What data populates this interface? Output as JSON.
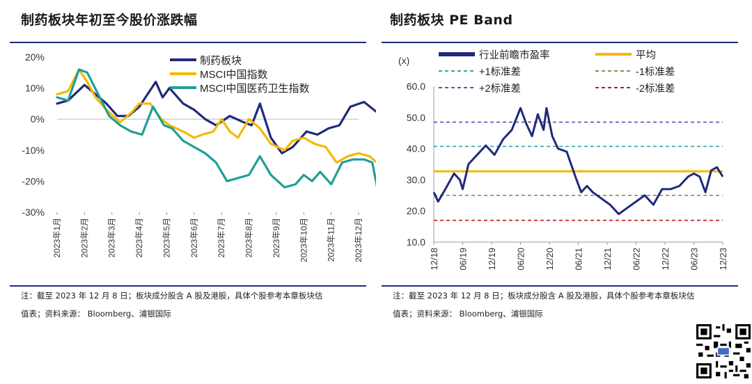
{
  "colors": {
    "navy": "#1f2a7a",
    "yellow": "#f5b800",
    "teal": "#1f9e98",
    "dashTeal": "#2aa6a6",
    "dashOlive": "#8a8a5a",
    "dashPurple": "#5a4fb0",
    "dashRed": "#c0151c"
  },
  "left_panel": {
    "title": "制药板块年初至今股价涨跌幅",
    "note_line1": "注：截至 2023 年 12 月 8 日；板块成分股含 A 股及港股，具体个股参考本章板块估",
    "note_line2": "值表；资料来源：  Bloomberg、浦银国际"
  },
  "right_panel": {
    "title": "制药板块 PE Band",
    "note_line1": "注：截至 2023 年 12 月 8 日；板块成分股含 A 股及港股，具体个股参考本章板块估",
    "note_line2": "值表；资料来源：  Bloomberg、浦银国际"
  },
  "chart_data": [
    {
      "type": "line",
      "title": "制药板块年初至今股价涨跌幅",
      "ylim": [
        -30,
        20
      ],
      "yticks": [
        "20%",
        "10%",
        "0%",
        "-10%",
        "-20%",
        "-30%"
      ],
      "categories": [
        "2023年1月",
        "2023年2月",
        "2023年3月",
        "2023年4月",
        "2023年5月",
        "2023年6月",
        "2023年7月",
        "2023年8月",
        "2023年9月",
        "2023年10月",
        "2023年11月",
        "2023年12月"
      ],
      "legend_position": "top-right",
      "series": [
        {
          "name": "制药板块",
          "color": "#1f2a7a",
          "x": [
            0,
            0.4,
            1,
            1.4,
            1.8,
            2.2,
            2.6,
            3,
            3.3,
            3.6,
            3.85,
            4.1,
            4.6,
            5,
            5.4,
            5.8,
            6.3,
            6.8,
            7.1,
            7.4,
            7.8,
            8.2,
            8.6,
            9.1,
            9.5,
            9.9,
            10.3,
            10.7,
            11.2,
            11.7
          ],
          "values": [
            5,
            6,
            11,
            8,
            5,
            1,
            1,
            4,
            8,
            12,
            7,
            10,
            5,
            3,
            0,
            -2,
            1,
            -1,
            -2,
            5,
            -6,
            -11,
            -9,
            -4,
            -5,
            -3,
            -2,
            4,
            5.5,
            2
          ]
        },
        {
          "name": "MSCI中国指数",
          "color": "#f5b800",
          "x": [
            0,
            0.4,
            0.8,
            1.1,
            1.4,
            1.8,
            2.3,
            2.7,
            3,
            3.4,
            3.8,
            4.1,
            4.6,
            5,
            5.3,
            5.7,
            6,
            6.3,
            6.6,
            7,
            7.4,
            7.8,
            8.3,
            8.6,
            9,
            9.4,
            9.8,
            10.2,
            10.6,
            11,
            11.4,
            11.8
          ],
          "values": [
            8,
            9,
            16,
            12,
            7,
            3,
            -1,
            2,
            5,
            5,
            0,
            -2,
            -4,
            -6,
            -5,
            -4,
            0,
            -4,
            -6,
            0,
            -3,
            -8,
            -10,
            -7,
            -6,
            -8,
            -9,
            -14,
            -12,
            -11,
            -12,
            -15
          ]
        },
        {
          "name": "MSCI中国医药卫生指数",
          "color": "#1f9e98",
          "x": [
            0,
            0.4,
            0.8,
            1.1,
            1.5,
            1.9,
            2.3,
            2.7,
            3.1,
            3.5,
            3.9,
            4.2,
            4.6,
            5,
            5.4,
            5.8,
            6.2,
            6.6,
            7,
            7.4,
            7.8,
            8.3,
            8.7,
            9,
            9.3,
            9.6,
            10,
            10.4,
            10.8,
            11.2,
            11.5,
            11.7
          ],
          "values": [
            7,
            6,
            16,
            15,
            8,
            1,
            -2,
            -4,
            -5,
            4,
            -2,
            -3,
            -7,
            -9,
            -11,
            -14,
            -20,
            -19,
            -18,
            -12,
            -18,
            -22,
            -21,
            -18,
            -20,
            -17,
            -21,
            -14,
            -13,
            -13,
            -14,
            -23
          ]
        }
      ]
    },
    {
      "type": "line",
      "title": "制药板块 PE Band",
      "ylabel": "(x)",
      "ylim": [
        10,
        60
      ],
      "yticks": [
        "60.0",
        "50.0",
        "40.0",
        "30.0",
        "20.0",
        "10.0"
      ],
      "categories": [
        "12/18",
        "06/19",
        "12/19",
        "06/20",
        "12/20",
        "06/21",
        "12/21",
        "06/22",
        "12/22",
        "06/23",
        "12/23"
      ],
      "legend_position": "top",
      "series": [
        {
          "name": "行业前瞻市盈率",
          "color": "#1f2a7a",
          "x": [
            0,
            0.15,
            0.4,
            0.7,
            0.9,
            1,
            1.2,
            1.5,
            1.8,
            2.1,
            2.4,
            2.7,
            3,
            3.2,
            3.4,
            3.6,
            3.8,
            3.9,
            4.1,
            4.3,
            4.6,
            4.9,
            5.1,
            5.3,
            5.5,
            5.8,
            6.1,
            6.4,
            6.7,
            7,
            7.3,
            7.6,
            7.9,
            8.2,
            8.5,
            8.8,
            9,
            9.2,
            9.4,
            9.6,
            9.8,
            10
          ],
          "values": [
            26,
            23,
            27,
            32,
            30,
            27,
            35,
            38,
            41,
            38,
            43,
            46,
            53,
            48,
            44,
            51,
            46,
            53,
            44,
            40,
            39,
            31,
            26,
            28,
            26,
            24,
            22,
            19,
            21,
            23,
            25,
            22,
            27,
            27,
            28,
            31,
            32,
            31,
            26,
            33,
            34,
            31
          ]
        },
        {
          "name": "平均",
          "color": "#f5b800",
          "value": 32.7
        },
        {
          "name": "+1标准差",
          "color": "#2aa6a6",
          "value": 40.7,
          "dash": true
        },
        {
          "name": "-1标准差",
          "color": "#8a8a5a",
          "value": 25.0,
          "dash": true
        },
        {
          "name": "+2标准差",
          "color": "#5a4fb0",
          "value": 48.5,
          "dash": true
        },
        {
          "name": "-2标准差",
          "color": "#c0151c",
          "value": 17.0,
          "dash": true
        }
      ]
    }
  ]
}
